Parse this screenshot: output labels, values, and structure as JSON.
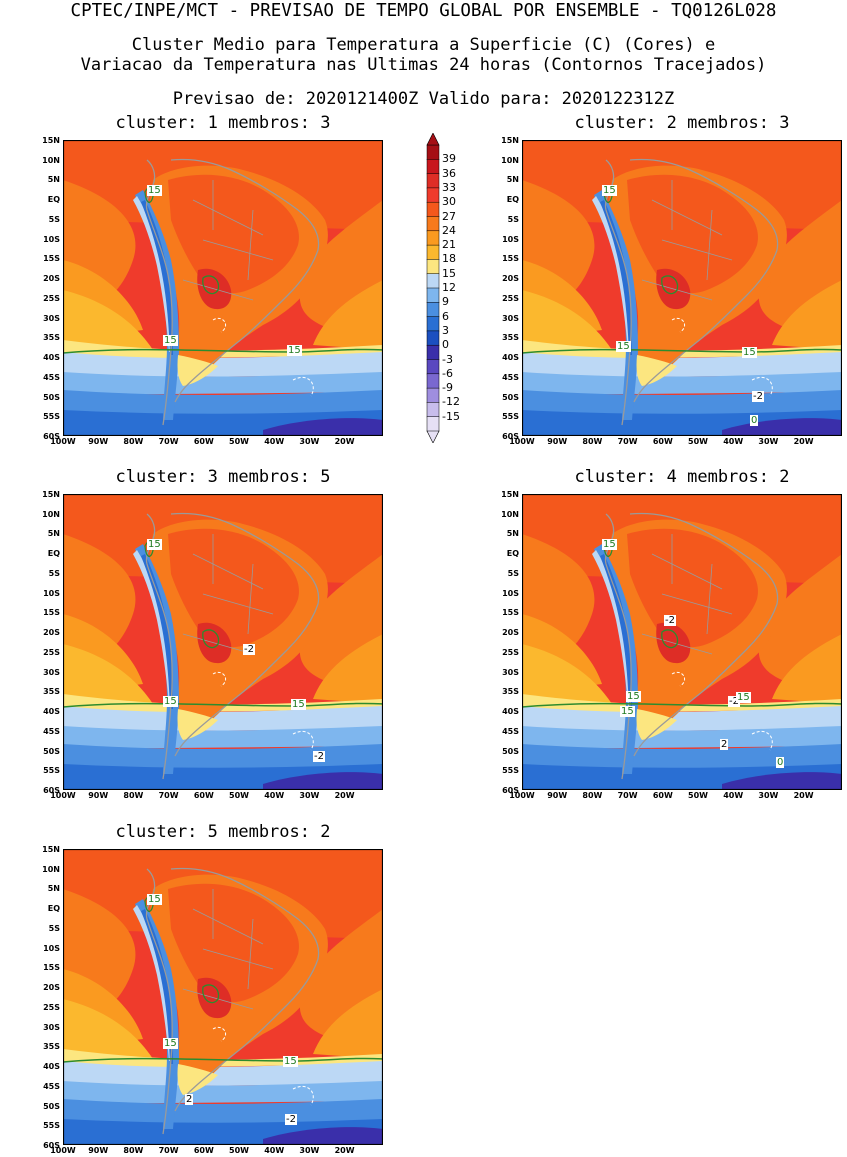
{
  "header": {
    "line1": "CPTEC/INPE/MCT - PREVISAO DE TEMPO GLOBAL POR ENSEMBLE - TQ0126L028",
    "line2": "Cluster Medio para Temperatura a Superficie (C) (Cores) e",
    "line3": "Variacao da Temperatura nas Ultimas 24 horas (Contornos Tracejados)",
    "line4": "Previsao de: 2020121400Z    Valido para: 2020122312Z"
  },
  "axes": {
    "lat_labels": [
      "15N",
      "10N",
      "5N",
      "EQ",
      "5S",
      "10S",
      "15S",
      "20S",
      "25S",
      "30S",
      "35S",
      "40S",
      "45S",
      "50S",
      "55S",
      "60S"
    ],
    "lon_labels": [
      "100W",
      "90W",
      "80W",
      "70W",
      "60W",
      "50W",
      "40W",
      "30W",
      "20W"
    ]
  },
  "colorbar": {
    "labels": [
      "39",
      "36",
      "33",
      "30",
      "27",
      "24",
      "21",
      "18",
      "15",
      "12",
      "9",
      "6",
      "3",
      "0",
      "-3",
      "-6",
      "-9",
      "-12",
      "-15"
    ],
    "colors": [
      "#a50f15",
      "#c8161d",
      "#de2d26",
      "#ef3b2c",
      "#f4581c",
      "#f77a1c",
      "#fa9a20",
      "#fbb82e",
      "#fce680",
      "#bcd8f5",
      "#7eb6ee",
      "#4b8fe0",
      "#2a6fd3",
      "#1b4fc0",
      "#3a2faa",
      "#5a48c0",
      "#7a68d0",
      "#9f8edf",
      "#c8bdec",
      "#e6e0f5"
    ]
  },
  "panels": [
    {
      "title": "cluster: 1   membros: 3",
      "labels": [
        {
          "text": "15",
          "color": "green",
          "pos": [
            90,
            50
          ]
        },
        {
          "text": "15",
          "color": "green",
          "pos": [
            106,
            200
          ]
        },
        {
          "text": "15",
          "color": "green",
          "pos": [
            230,
            210
          ]
        }
      ]
    },
    {
      "title": "cluster: 2   membros: 3",
      "labels": [
        {
          "text": "15",
          "color": "green",
          "pos": [
            86,
            50
          ]
        },
        {
          "text": "15",
          "color": "green",
          "pos": [
            100,
            206
          ]
        },
        {
          "text": "15",
          "color": "green",
          "pos": [
            226,
            212
          ]
        },
        {
          "text": "-2",
          "color": "black",
          "pos": [
            236,
            256
          ]
        },
        {
          "text": "0",
          "color": "green",
          "pos": [
            234,
            280
          ]
        }
      ]
    },
    {
      "title": "cluster: 3   membros: 5",
      "labels": [
        {
          "text": "15",
          "color": "green",
          "pos": [
            90,
            50
          ]
        },
        {
          "text": "-2",
          "color": "black",
          "pos": [
            186,
            155
          ]
        },
        {
          "text": "15",
          "color": "green",
          "pos": [
            106,
            207
          ]
        },
        {
          "text": "15",
          "color": "green",
          "pos": [
            234,
            210
          ]
        },
        {
          "text": "-2",
          "color": "black",
          "pos": [
            256,
            262
          ]
        }
      ]
    },
    {
      "title": "cluster: 4   membros: 2",
      "labels": [
        {
          "text": "15",
          "color": "green",
          "pos": [
            86,
            50
          ]
        },
        {
          "text": "-2",
          "color": "black",
          "pos": [
            148,
            126
          ]
        },
        {
          "text": "15",
          "color": "green",
          "pos": [
            110,
            202
          ]
        },
        {
          "text": "15",
          "color": "green",
          "pos": [
            104,
            217
          ]
        },
        {
          "text": "-2",
          "color": "black",
          "pos": [
            212,
            207
          ]
        },
        {
          "text": "15",
          "color": "green",
          "pos": [
            220,
            203
          ]
        },
        {
          "text": "2",
          "color": "black",
          "pos": [
            204,
            250
          ]
        },
        {
          "text": "0",
          "color": "green",
          "pos": [
            260,
            268
          ]
        }
      ]
    },
    {
      "title": "cluster: 5   membros: 2",
      "labels": [
        {
          "text": "15",
          "color": "green",
          "pos": [
            90,
            50
          ]
        },
        {
          "text": "15",
          "color": "green",
          "pos": [
            106,
            194
          ]
        },
        {
          "text": "15",
          "color": "green",
          "pos": [
            226,
            212
          ]
        },
        {
          "text": "2",
          "color": "black",
          "pos": [
            128,
            250
          ]
        },
        {
          "text": "-2",
          "color": "black",
          "pos": [
            228,
            270
          ]
        }
      ]
    }
  ]
}
